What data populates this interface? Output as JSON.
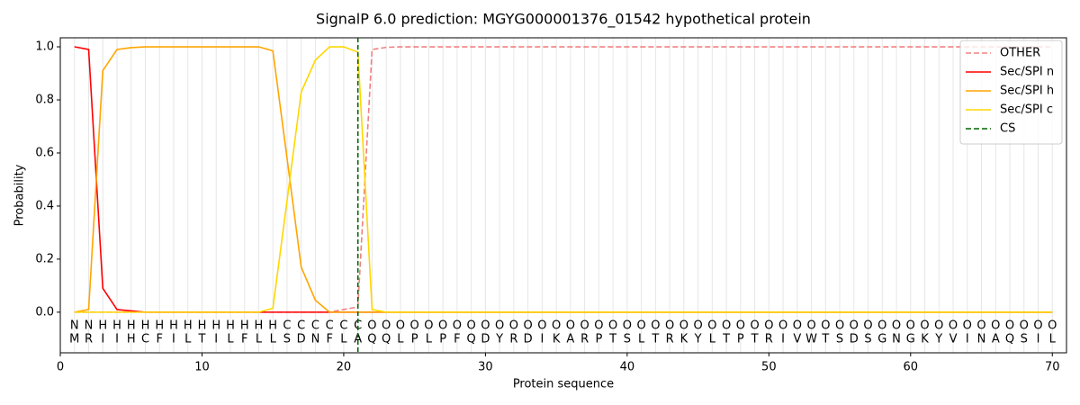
{
  "chart_data": {
    "type": "line",
    "title": "SignalP 6.0 prediction: MGYG000001376_01542 hypothetical protein",
    "x_label": "Protein sequence",
    "y_label": "Probability",
    "x": [
      1,
      2,
      3,
      4,
      5,
      6,
      7,
      8,
      9,
      10,
      11,
      12,
      13,
      14,
      15,
      16,
      17,
      18,
      19,
      20,
      21,
      22,
      23,
      24,
      25,
      26,
      27,
      28,
      29,
      30,
      31,
      32,
      33,
      34,
      35,
      36,
      37,
      38,
      39,
      40,
      41,
      42,
      43,
      44,
      45,
      46,
      47,
      48,
      49,
      50,
      51,
      52,
      53,
      54,
      55,
      56,
      57,
      58,
      59,
      60,
      61,
      62,
      63,
      64,
      65,
      66,
      67,
      68,
      69,
      70
    ],
    "sequence": [
      "M",
      "R",
      "I",
      "I",
      "H",
      "C",
      "F",
      "I",
      "L",
      "T",
      "I",
      "L",
      "F",
      "L",
      "L",
      "S",
      "D",
      "N",
      "F",
      "L",
      "A",
      "Q",
      "Q",
      "L",
      "P",
      "L",
      "P",
      "F",
      "Q",
      "D",
      "Y",
      "R",
      "D",
      "I",
      "K",
      "A",
      "R",
      "P",
      "T",
      "S",
      "L",
      "T",
      "R",
      "K",
      "Y",
      "L",
      "T",
      "P",
      "T",
      "R",
      "I",
      "V",
      "W",
      "T",
      "S",
      "D",
      "S",
      "G",
      "N",
      "G",
      "K",
      "Y",
      "V",
      "I",
      "N",
      "A",
      "Q",
      "S",
      "I",
      "L"
    ],
    "labels": [
      "N",
      "N",
      "H",
      "H",
      "H",
      "H",
      "H",
      "H",
      "H",
      "H",
      "H",
      "H",
      "H",
      "H",
      "H",
      "C",
      "C",
      "C",
      "C",
      "C",
      "C",
      "O",
      "O",
      "O",
      "O",
      "O",
      "O",
      "O",
      "O",
      "O",
      "O",
      "O",
      "O",
      "O",
      "O",
      "O",
      "O",
      "O",
      "O",
      "O",
      "O",
      "O",
      "O",
      "O",
      "O",
      "O",
      "O",
      "O",
      "O",
      "O",
      "O",
      "O",
      "O",
      "O",
      "O",
      "O",
      "O",
      "O",
      "O",
      "O",
      "O",
      "O",
      "O",
      "O",
      "O",
      "O",
      "O",
      "O",
      "O",
      "O"
    ],
    "label_colors": {
      "N": "#ff0000",
      "H": "#ffa500",
      "C": "#ffd700",
      "O": "#808080"
    },
    "series": [
      {
        "name": "OTHER",
        "color": "#f08080",
        "dashed": true,
        "values": [
          0,
          0,
          0,
          0,
          0,
          0,
          0,
          0,
          0,
          0,
          0,
          0,
          0,
          0,
          0,
          0,
          0,
          0,
          0,
          0.01,
          0.02,
          0.99,
          0.998,
          1,
          1,
          1,
          1,
          1,
          1,
          1,
          1,
          1,
          1,
          1,
          1,
          1,
          1,
          1,
          1,
          1,
          1,
          1,
          1,
          1,
          1,
          1,
          1,
          1,
          1,
          1,
          1,
          1,
          1,
          1,
          1,
          1,
          1,
          1,
          1,
          1,
          1,
          1,
          1,
          1,
          1,
          1,
          1,
          1,
          1,
          1
        ]
      },
      {
        "name": "Sec/SPI n",
        "color": "#ff0000",
        "dashed": false,
        "values": [
          1.0,
          0.99,
          0.09,
          0.01,
          0.005,
          0,
          0,
          0,
          0,
          0,
          0,
          0,
          0,
          0,
          0,
          0,
          0,
          0,
          0,
          0,
          0,
          0,
          0,
          0,
          0,
          0,
          0,
          0,
          0,
          0,
          0,
          0,
          0,
          0,
          0,
          0,
          0,
          0,
          0,
          0,
          0,
          0,
          0,
          0,
          0,
          0,
          0,
          0,
          0,
          0,
          0,
          0,
          0,
          0,
          0,
          0,
          0,
          0,
          0,
          0,
          0,
          0,
          0,
          0,
          0,
          0,
          0,
          0,
          0,
          0
        ]
      },
      {
        "name": "Sec/SPI h",
        "color": "#ffa500",
        "dashed": false,
        "values": [
          0,
          0.01,
          0.91,
          0.99,
          0.997,
          1,
          1,
          1,
          1,
          1,
          1,
          1,
          1,
          1,
          0.985,
          0.58,
          0.17,
          0.045,
          0,
          0,
          0,
          0,
          0,
          0,
          0,
          0,
          0,
          0,
          0,
          0,
          0,
          0,
          0,
          0,
          0,
          0,
          0,
          0,
          0,
          0,
          0,
          0,
          0,
          0,
          0,
          0,
          0,
          0,
          0,
          0,
          0,
          0,
          0,
          0,
          0,
          0,
          0,
          0,
          0,
          0,
          0,
          0,
          0,
          0,
          0,
          0,
          0,
          0,
          0,
          0
        ]
      },
      {
        "name": "Sec/SPI c",
        "color": "#ffd700",
        "dashed": false,
        "values": [
          0,
          0,
          0,
          0,
          0,
          0,
          0,
          0,
          0,
          0,
          0,
          0,
          0,
          0,
          0.015,
          0.42,
          0.83,
          0.95,
          1,
          1,
          0.98,
          0.01,
          0,
          0,
          0,
          0,
          0,
          0,
          0,
          0,
          0,
          0,
          0,
          0,
          0,
          0,
          0,
          0,
          0,
          0,
          0,
          0,
          0,
          0,
          0,
          0,
          0,
          0,
          0,
          0,
          0,
          0,
          0,
          0,
          0,
          0,
          0,
          0,
          0,
          0,
          0,
          0,
          0,
          0,
          0,
          0,
          0,
          0,
          0,
          0
        ]
      }
    ],
    "cs": {
      "name": "CS",
      "color": "#006400",
      "x": 21
    },
    "xlim": [
      0,
      71
    ],
    "xticks": [
      0,
      10,
      20,
      30,
      40,
      50,
      60,
      70
    ],
    "ylim": [
      -0.153,
      1.034
    ],
    "yticks": [
      {
        "value": 0,
        "label": "0.0"
      },
      {
        "value": 0.2,
        "label": "0.2"
      },
      {
        "value": 0.4,
        "label": "0.4"
      },
      {
        "value": 0.6,
        "label": "0.6"
      },
      {
        "value": 0.8,
        "label": "0.8"
      },
      {
        "value": 1,
        "label": "1.0"
      }
    ],
    "legend": "upper right"
  }
}
